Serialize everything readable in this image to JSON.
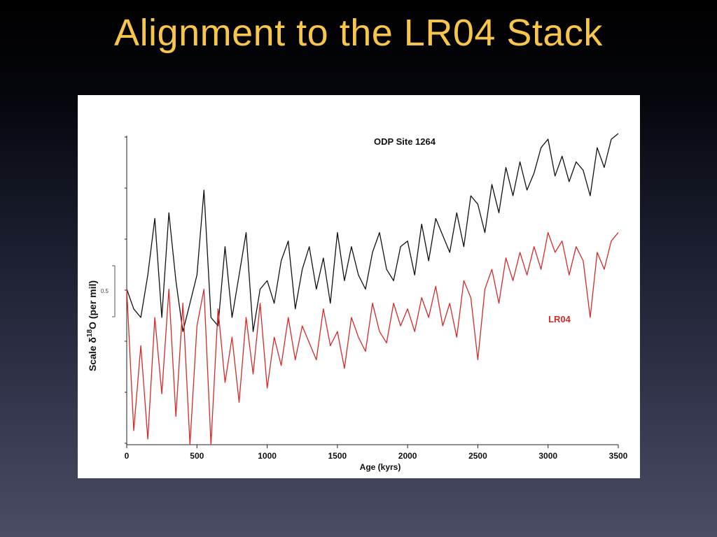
{
  "slide": {
    "title": "Alignment to the LR04 Stack"
  },
  "colors": {
    "title": "#f7c54a",
    "odp_series": "#111111",
    "lr04_series": "#d42a2a"
  },
  "chart_data": {
    "type": "line",
    "xlabel": "Age (kyrs)",
    "ylabel_prefix": "Scale δ",
    "ylabel_sup": "18",
    "ylabel_suffix": "O (per mil)",
    "scale_bar_label": "0.5",
    "scale_bar_value": 0.5,
    "xlim": [
      0,
      3500
    ],
    "xticks": [
      0,
      500,
      1000,
      1500,
      2000,
      2500,
      3000,
      3500
    ],
    "grid": false,
    "series": [
      {
        "name": "ODP Site 1264",
        "color": "#111111",
        "label_placement": "top-center",
        "x": [
          0,
          50,
          100,
          150,
          200,
          250,
          300,
          350,
          400,
          450,
          500,
          550,
          600,
          650,
          700,
          750,
          800,
          850,
          900,
          950,
          1000,
          1050,
          1100,
          1150,
          1200,
          1250,
          1300,
          1350,
          1400,
          1450,
          1500,
          1550,
          1600,
          1650,
          1700,
          1750,
          1800,
          1850,
          1900,
          1950,
          2000,
          2050,
          2100,
          2150,
          2200,
          2250,
          2300,
          2350,
          2400,
          2450,
          2500,
          2550,
          2600,
          2650,
          2700,
          2750,
          2800,
          2850,
          2900,
          2950,
          3000,
          3050,
          3100,
          3150,
          3200,
          3250,
          3300,
          3350,
          3400,
          3450,
          3500
        ],
        "y": [
          0.55,
          0.48,
          0.45,
          0.6,
          0.8,
          0.45,
          0.82,
          0.58,
          0.4,
          0.5,
          0.6,
          0.9,
          0.45,
          0.42,
          0.7,
          0.45,
          0.6,
          0.75,
          0.4,
          0.55,
          0.58,
          0.5,
          0.65,
          0.72,
          0.48,
          0.62,
          0.7,
          0.55,
          0.66,
          0.5,
          0.75,
          0.58,
          0.7,
          0.6,
          0.55,
          0.68,
          0.75,
          0.62,
          0.58,
          0.7,
          0.72,
          0.6,
          0.78,
          0.65,
          0.8,
          0.74,
          0.68,
          0.82,
          0.7,
          0.88,
          0.85,
          0.75,
          0.92,
          0.82,
          0.98,
          0.88,
          1.0,
          0.9,
          0.96,
          1.05,
          1.08,
          0.95,
          1.02,
          0.93,
          1.0,
          0.97,
          0.88,
          1.05,
          0.98,
          1.08,
          1.1
        ]
      },
      {
        "name": "LR04",
        "color": "#d42a2a",
        "label_placement": "right",
        "x": [
          0,
          50,
          100,
          150,
          200,
          250,
          300,
          350,
          400,
          450,
          500,
          550,
          600,
          650,
          700,
          750,
          800,
          850,
          900,
          950,
          1000,
          1050,
          1100,
          1150,
          1200,
          1250,
          1300,
          1350,
          1400,
          1450,
          1500,
          1550,
          1600,
          1650,
          1700,
          1750,
          1800,
          1850,
          1900,
          1950,
          2000,
          2050,
          2100,
          2150,
          2200,
          2250,
          2300,
          2350,
          2400,
          2450,
          2500,
          2550,
          2600,
          2650,
          2700,
          2750,
          2800,
          2850,
          2900,
          2950,
          3000,
          3050,
          3100,
          3150,
          3200,
          3250,
          3300,
          3350,
          3400,
          3450,
          3500
        ],
        "y": [
          0.55,
          0.05,
          0.35,
          0.02,
          0.45,
          0.18,
          0.55,
          0.1,
          0.5,
          0.0,
          0.42,
          0.55,
          0.0,
          0.48,
          0.22,
          0.38,
          0.15,
          0.45,
          0.25,
          0.5,
          0.2,
          0.38,
          0.28,
          0.45,
          0.3,
          0.42,
          0.36,
          0.3,
          0.48,
          0.35,
          0.4,
          0.27,
          0.45,
          0.38,
          0.33,
          0.5,
          0.4,
          0.36,
          0.5,
          0.42,
          0.48,
          0.4,
          0.52,
          0.45,
          0.56,
          0.42,
          0.5,
          0.38,
          0.58,
          0.52,
          0.3,
          0.55,
          0.62,
          0.5,
          0.66,
          0.58,
          0.68,
          0.6,
          0.7,
          0.62,
          0.75,
          0.68,
          0.72,
          0.6,
          0.7,
          0.65,
          0.45,
          0.68,
          0.62,
          0.72,
          0.75
        ]
      }
    ]
  }
}
